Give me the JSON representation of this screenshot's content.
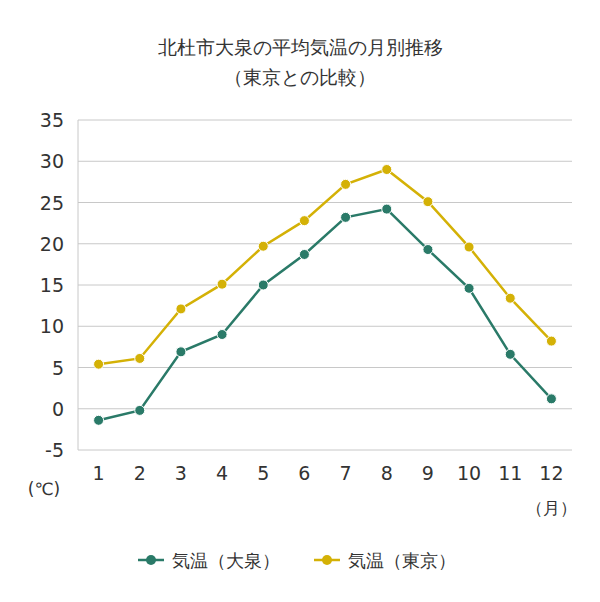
{
  "chart_data": {
    "type": "line",
    "title": "北杜市大泉の平均気温の月別推移",
    "subtitle": "（東京との比較）",
    "x_label": "（月）",
    "y_label": "(℃)",
    "categories": [
      "1",
      "2",
      "3",
      "4",
      "5",
      "6",
      "7",
      "8",
      "9",
      "10",
      "11",
      "12"
    ],
    "series": [
      {
        "name": "気温（大泉）",
        "color": "#2a7a68",
        "marker": "circle",
        "values": [
          -1.4,
          -0.2,
          6.9,
          9.0,
          15.0,
          18.7,
          23.2,
          24.2,
          19.3,
          14.6,
          6.6,
          1.2
        ]
      },
      {
        "name": "気温（東京）",
        "color": "#d4b106",
        "marker": "circle",
        "values": [
          5.4,
          6.1,
          12.1,
          15.1,
          19.7,
          22.8,
          27.2,
          29.0,
          25.1,
          19.6,
          13.4,
          8.2
        ]
      }
    ],
    "ylim": [
      -5,
      35
    ],
    "yticks": [
      -5,
      0,
      5,
      10,
      15,
      20,
      25,
      30,
      35
    ],
    "grid": true,
    "legend": "bottom"
  }
}
